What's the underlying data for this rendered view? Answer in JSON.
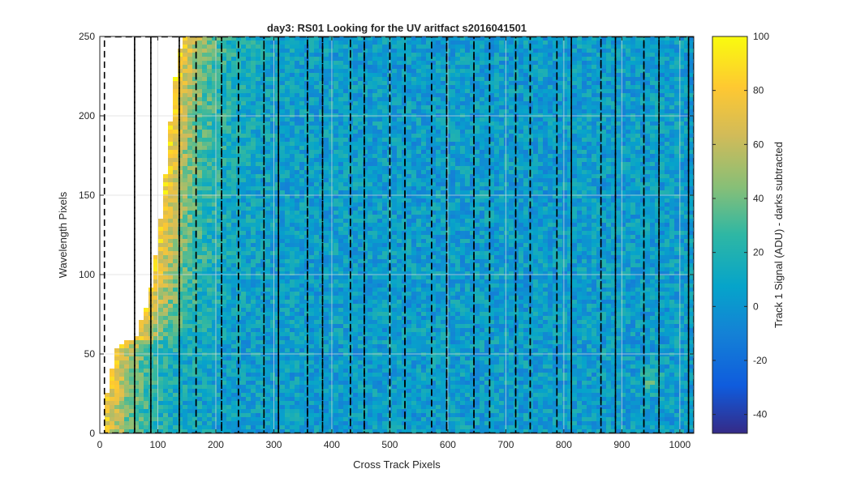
{
  "chart_data": {
    "type": "heatmap",
    "title": "day3: RS01  Looking for the UV aritfact  s2016041501",
    "xlabel": "Cross Track Pixels",
    "ylabel": "Wavelength Pixels",
    "xlim": [
      0,
      1024
    ],
    "ylim": [
      0,
      250
    ],
    "xticks": [
      0,
      100,
      200,
      300,
      400,
      500,
      600,
      700,
      800,
      900,
      1000
    ],
    "yticks": [
      0,
      50,
      100,
      150,
      200,
      250
    ],
    "grid": true,
    "colorbar": {
      "label": "Track 1 Signal (ADU) - darks subtracted",
      "range": [
        -47,
        100
      ],
      "ticks": [
        -40,
        -20,
        0,
        20,
        40,
        60,
        80,
        100
      ],
      "colormap": "parula",
      "placement": "right"
    },
    "unlit_region_boundary": {
      "x": [
        5,
        20,
        25,
        40,
        60,
        80,
        90,
        110,
        120,
        130,
        140,
        145
      ],
      "y": [
        10,
        40,
        50,
        58,
        58,
        80,
        95,
        150,
        190,
        225,
        245,
        250
      ]
    },
    "bright_edge_signal_adu": 85,
    "background_signal_adu": 5,
    "artifact": {
      "x_center": 950,
      "y_center": 33,
      "signal_adu": 35
    },
    "dashed_region_boxes": [
      {
        "x": [
          8,
          60
        ],
        "y": [
          0,
          250
        ]
      },
      {
        "x": [
          60,
          88
        ],
        "y": [
          0,
          250
        ]
      },
      {
        "x": [
          88,
          137
        ],
        "y": [
          0,
          250
        ]
      },
      {
        "x": [
          137,
          166
        ],
        "y": [
          0,
          250
        ]
      },
      {
        "x": [
          166,
          210
        ],
        "y": [
          0,
          250
        ]
      },
      {
        "x": [
          210,
          239
        ],
        "y": [
          0,
          250
        ]
      },
      {
        "x": [
          239,
          283
        ],
        "y": [
          0,
          250
        ]
      },
      {
        "x": [
          283,
          308
        ],
        "y": [
          0,
          250
        ]
      },
      {
        "x": [
          308,
          358
        ],
        "y": [
          0,
          250
        ]
      },
      {
        "x": [
          358,
          384
        ],
        "y": [
          0,
          250
        ]
      },
      {
        "x": [
          384,
          432
        ],
        "y": [
          0,
          250
        ]
      },
      {
        "x": [
          432,
          456
        ],
        "y": [
          0,
          250
        ]
      },
      {
        "x": [
          456,
          500
        ],
        "y": [
          0,
          250
        ]
      },
      {
        "x": [
          500,
          526
        ],
        "y": [
          0,
          250
        ]
      },
      {
        "x": [
          526,
          572
        ],
        "y": [
          0,
          250
        ]
      },
      {
        "x": [
          572,
          598
        ],
        "y": [
          0,
          250
        ]
      },
      {
        "x": [
          598,
          645
        ],
        "y": [
          0,
          250
        ]
      },
      {
        "x": [
          645,
          672
        ],
        "y": [
          0,
          250
        ]
      },
      {
        "x": [
          672,
          717
        ],
        "y": [
          0,
          250
        ]
      },
      {
        "x": [
          717,
          742
        ],
        "y": [
          0,
          250
        ]
      },
      {
        "x": [
          742,
          788
        ],
        "y": [
          0,
          250
        ]
      },
      {
        "x": [
          788,
          813
        ],
        "y": [
          0,
          250
        ]
      },
      {
        "x": [
          813,
          864
        ],
        "y": [
          0,
          250
        ]
      },
      {
        "x": [
          864,
          889
        ],
        "y": [
          0,
          250
        ]
      },
      {
        "x": [
          889,
          938
        ],
        "y": [
          0,
          250
        ]
      },
      {
        "x": [
          938,
          964
        ],
        "y": [
          0,
          250
        ]
      },
      {
        "x": [
          964,
          1015
        ],
        "y": [
          0,
          250
        ]
      },
      {
        "x": [
          1015,
          1024
        ],
        "y": [
          0,
          250
        ]
      }
    ]
  }
}
